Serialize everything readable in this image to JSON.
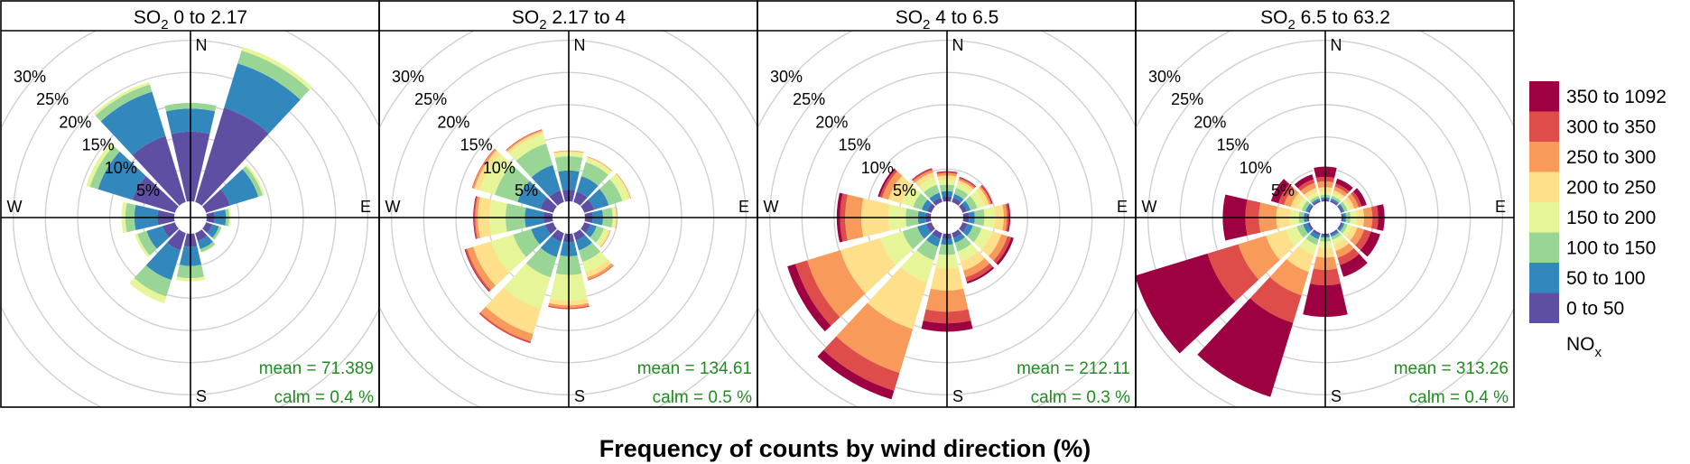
{
  "chart_data": {
    "type": "polar-stacked-bar",
    "xlabel": "Frequency of counts by wind direction (%)",
    "radial_ticks": [
      "5%",
      "10%",
      "15%",
      "20%",
      "25%",
      "30%"
    ],
    "radial_tick_values": [
      5,
      10,
      15,
      20,
      25,
      30
    ],
    "rmax": 30,
    "directions": [
      "N",
      "E",
      "S",
      "W"
    ],
    "sector_angles": [
      0,
      30,
      60,
      90,
      120,
      150,
      180,
      210,
      240,
      270,
      300,
      330
    ],
    "pollutant_label": "NO",
    "pollutant_sub": "x",
    "legend": {
      "placement": "right",
      "bins": [
        "350 to 1092",
        "300 to 350",
        "250 to 300",
        "200 to 250",
        "150 to 200",
        "100 to 150",
        "50 to 100",
        "0 to 50"
      ],
      "colors": [
        "#9e0142",
        "#de4d4a",
        "#f89a5a",
        "#fee08b",
        "#e6f598",
        "#99d594",
        "#3288bd",
        "#5e4fa2"
      ]
    },
    "panels": [
      {
        "title_prefix": "SO",
        "title_sub": "2",
        "title_suffix": " 0 to 2.17",
        "mean_label": "mean = ",
        "mean": "71.389",
        "calm_label": "calm = ",
        "calm": "0.4 %",
        "sectors": [
          [
            10.8,
            14.4,
            15.3,
            15.3,
            15.3,
            15.3,
            15.3,
            15.3
          ],
          [
            15.3,
            22.5,
            24.6,
            25.2,
            25.2,
            25.2,
            25.2,
            25.2
          ],
          [
            3.9,
            8.5,
            9.2,
            9.5,
            9.5,
            9.5,
            9.5,
            9.5
          ],
          [
            1.2,
            3.0,
            3.5,
            3.7,
            3.7,
            3.7,
            3.7,
            3.7
          ],
          [
            1.0,
            2.1,
            2.5,
            2.6,
            2.6,
            2.6,
            2.6,
            2.6
          ],
          [
            1.3,
            2.6,
            3.1,
            3.2,
            3.2,
            3.2,
            3.2,
            3.2
          ],
          [
            2.0,
            5.0,
            6.9,
            7.4,
            7.4,
            7.4,
            7.4,
            7.4
          ],
          [
            2.8,
            7.6,
            10.3,
            11.4,
            11.4,
            11.4,
            11.4,
            11.4
          ],
          [
            2.0,
            4.6,
            6.1,
            6.5,
            6.5,
            6.5,
            6.5,
            6.5
          ],
          [
            2.6,
            6.2,
            7.6,
            8.2,
            8.2,
            8.2,
            8.2,
            8.2
          ],
          [
            6.9,
            12.5,
            13.8,
            14.4,
            14.4,
            14.4,
            14.4,
            14.4
          ],
          [
            10.7,
            17.9,
            19.1,
            19.5,
            19.5,
            19.5,
            19.5,
            19.5
          ]
        ]
      },
      {
        "title_prefix": "SO",
        "title_sub": "2",
        "title_suffix": " 2.17 to 4",
        "mean_label": "mean = ",
        "mean": "134.61",
        "calm_label": "calm = ",
        "calm": "0.5 %",
        "sectors": [
          [
            1.8,
            4.8,
            7.0,
            7.6,
            7.8,
            7.9,
            7.9,
            7.9
          ],
          [
            1.7,
            4.2,
            6.5,
            7.1,
            7.3,
            7.4,
            7.4,
            7.4
          ],
          [
            1.6,
            4.0,
            6.2,
            7.3,
            7.5,
            7.6,
            7.6,
            7.6
          ],
          [
            1.2,
            2.8,
            4.3,
            4.8,
            4.9,
            5.0,
            5.0,
            5.0
          ],
          [
            1.0,
            2.0,
            3.2,
            3.9,
            4.2,
            4.3,
            4.3,
            4.3
          ],
          [
            1.2,
            2.8,
            4.7,
            6.4,
            7.2,
            7.6,
            7.7,
            7.7
          ],
          [
            1.3,
            3.5,
            6.4,
            10.4,
            11.1,
            11.5,
            11.7,
            11.7
          ],
          [
            1.4,
            3.9,
            7.2,
            12.3,
            16.4,
            17.6,
            17.9,
            17.9
          ],
          [
            1.3,
            3.6,
            6.5,
            10.1,
            13.0,
            14.0,
            14.3,
            14.4
          ],
          [
            1.4,
            4.3,
            7.3,
            9.8,
            11.6,
            12.0,
            12.2,
            12.3
          ],
          [
            2.1,
            5.8,
            9.5,
            11.9,
            12.8,
            13.1,
            13.2,
            13.2
          ],
          [
            1.9,
            6.0,
            9.5,
            11.0,
            11.5,
            11.7,
            11.8,
            11.8
          ]
        ]
      },
      {
        "title_prefix": "SO",
        "title_sub": "2",
        "title_suffix": " 4 to 6.5",
        "mean_label": "mean = ",
        "mean": "212.11",
        "calm_label": "calm = ",
        "calm": "0.3 %",
        "sectors": [
          [
            0.8,
            1.6,
            2.6,
            3.4,
            4.0,
            4.4,
            4.6,
            4.7
          ],
          [
            0.7,
            1.3,
            2.3,
            3.0,
            3.5,
            3.8,
            4.0,
            4.1
          ],
          [
            0.7,
            1.3,
            2.4,
            3.6,
            4.3,
            4.6,
            4.8,
            4.9
          ],
          [
            0.9,
            1.8,
            3.3,
            5.0,
            6.3,
            6.8,
            7.1,
            7.3
          ],
          [
            0.8,
            1.7,
            3.1,
            4.8,
            6.3,
            7.3,
            7.9,
            8.3
          ],
          [
            0.8,
            1.6,
            3.0,
            4.6,
            6.1,
            7.2,
            7.9,
            8.2
          ],
          [
            0.8,
            1.7,
            3.3,
            5.4,
            8.8,
            12.1,
            13.9,
            15.2
          ],
          [
            0.9,
            2.2,
            4.4,
            8.0,
            15.6,
            22.7,
            25.6,
            27.0
          ],
          [
            0.9,
            2.3,
            4.7,
            8.3,
            14.8,
            20.2,
            22.1,
            23.4
          ],
          [
            0.8,
            2.0,
            3.9,
            6.6,
            10.8,
            13.3,
            14.1,
            14.6
          ],
          [
            0.7,
            1.6,
            3.0,
            4.9,
            7.0,
            8.0,
            8.4,
            8.7
          ],
          [
            0.7,
            1.5,
            2.8,
            4.0,
            4.8,
            5.2,
            5.4,
            5.5
          ]
        ]
      },
      {
        "title_prefix": "SO",
        "title_sub": "2",
        "title_suffix": " 6.5 to 63.2",
        "mean_label": "mean = ",
        "mean": "313.26",
        "calm_label": "calm = ",
        "calm": "0.4 %",
        "sectors": [
          [
            0.3,
            0.6,
            1.0,
            1.5,
            2.2,
            3.1,
            3.8,
            5.4
          ],
          [
            0.3,
            0.6,
            1.0,
            1.4,
            1.9,
            2.5,
            3.0,
            3.8
          ],
          [
            0.3,
            0.6,
            1.1,
            1.6,
            2.2,
            2.9,
            3.4,
            4.2
          ],
          [
            0.3,
            0.7,
            1.4,
            2.3,
            3.5,
            4.8,
            5.7,
            6.7
          ],
          [
            0.3,
            0.6,
            1.1,
            1.8,
            2.7,
            3.8,
            4.9,
            6.4
          ],
          [
            0.3,
            0.6,
            1.1,
            1.9,
            2.9,
            4.0,
            5.2,
            7.1
          ],
          [
            0.3,
            0.6,
            1.2,
            2.2,
            3.7,
            5.6,
            8.0,
            12.9
          ],
          [
            0.4,
            1.0,
            1.9,
            3.5,
            6.3,
            10.1,
            14.6,
            26.6
          ],
          [
            0.4,
            1.1,
            2.1,
            3.9,
            7.1,
            11.6,
            16.6,
            28.4
          ],
          [
            0.3,
            0.8,
            1.6,
            3.0,
            5.1,
            7.8,
            9.9,
            13.4
          ],
          [
            0.3,
            0.7,
            1.3,
            2.1,
            3.1,
            4.2,
            5.1,
            6.3
          ],
          [
            0.3,
            0.6,
            1.0,
            1.6,
            2.3,
            3.1,
            3.7,
            4.5
          ]
        ]
      }
    ]
  }
}
